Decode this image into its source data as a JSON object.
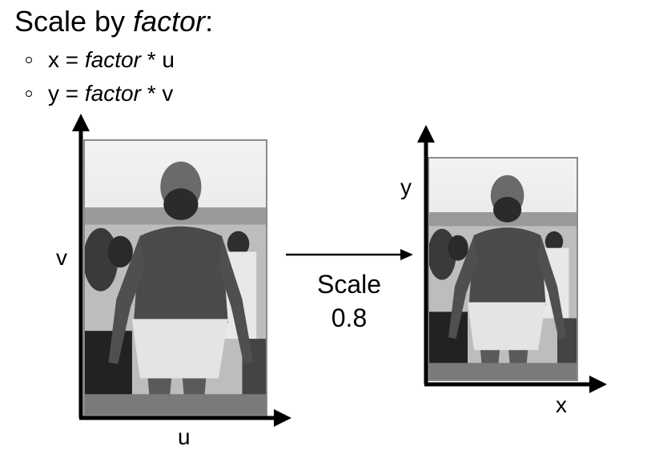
{
  "title": {
    "prefix": "Scale by ",
    "italic": "factor",
    "suffix": ":"
  },
  "bullets": [
    {
      "lhs": "x = ",
      "factor": "factor",
      "rhs": " * u"
    },
    {
      "lhs": "y = ",
      "factor": "factor",
      "rhs": " * v"
    }
  ],
  "source_axes": {
    "vertical_label": "v",
    "horizontal_label": "u"
  },
  "target_axes": {
    "vertical_label": "y",
    "horizontal_label": "x"
  },
  "operation": {
    "name": "Scale",
    "value": "0.8"
  }
}
